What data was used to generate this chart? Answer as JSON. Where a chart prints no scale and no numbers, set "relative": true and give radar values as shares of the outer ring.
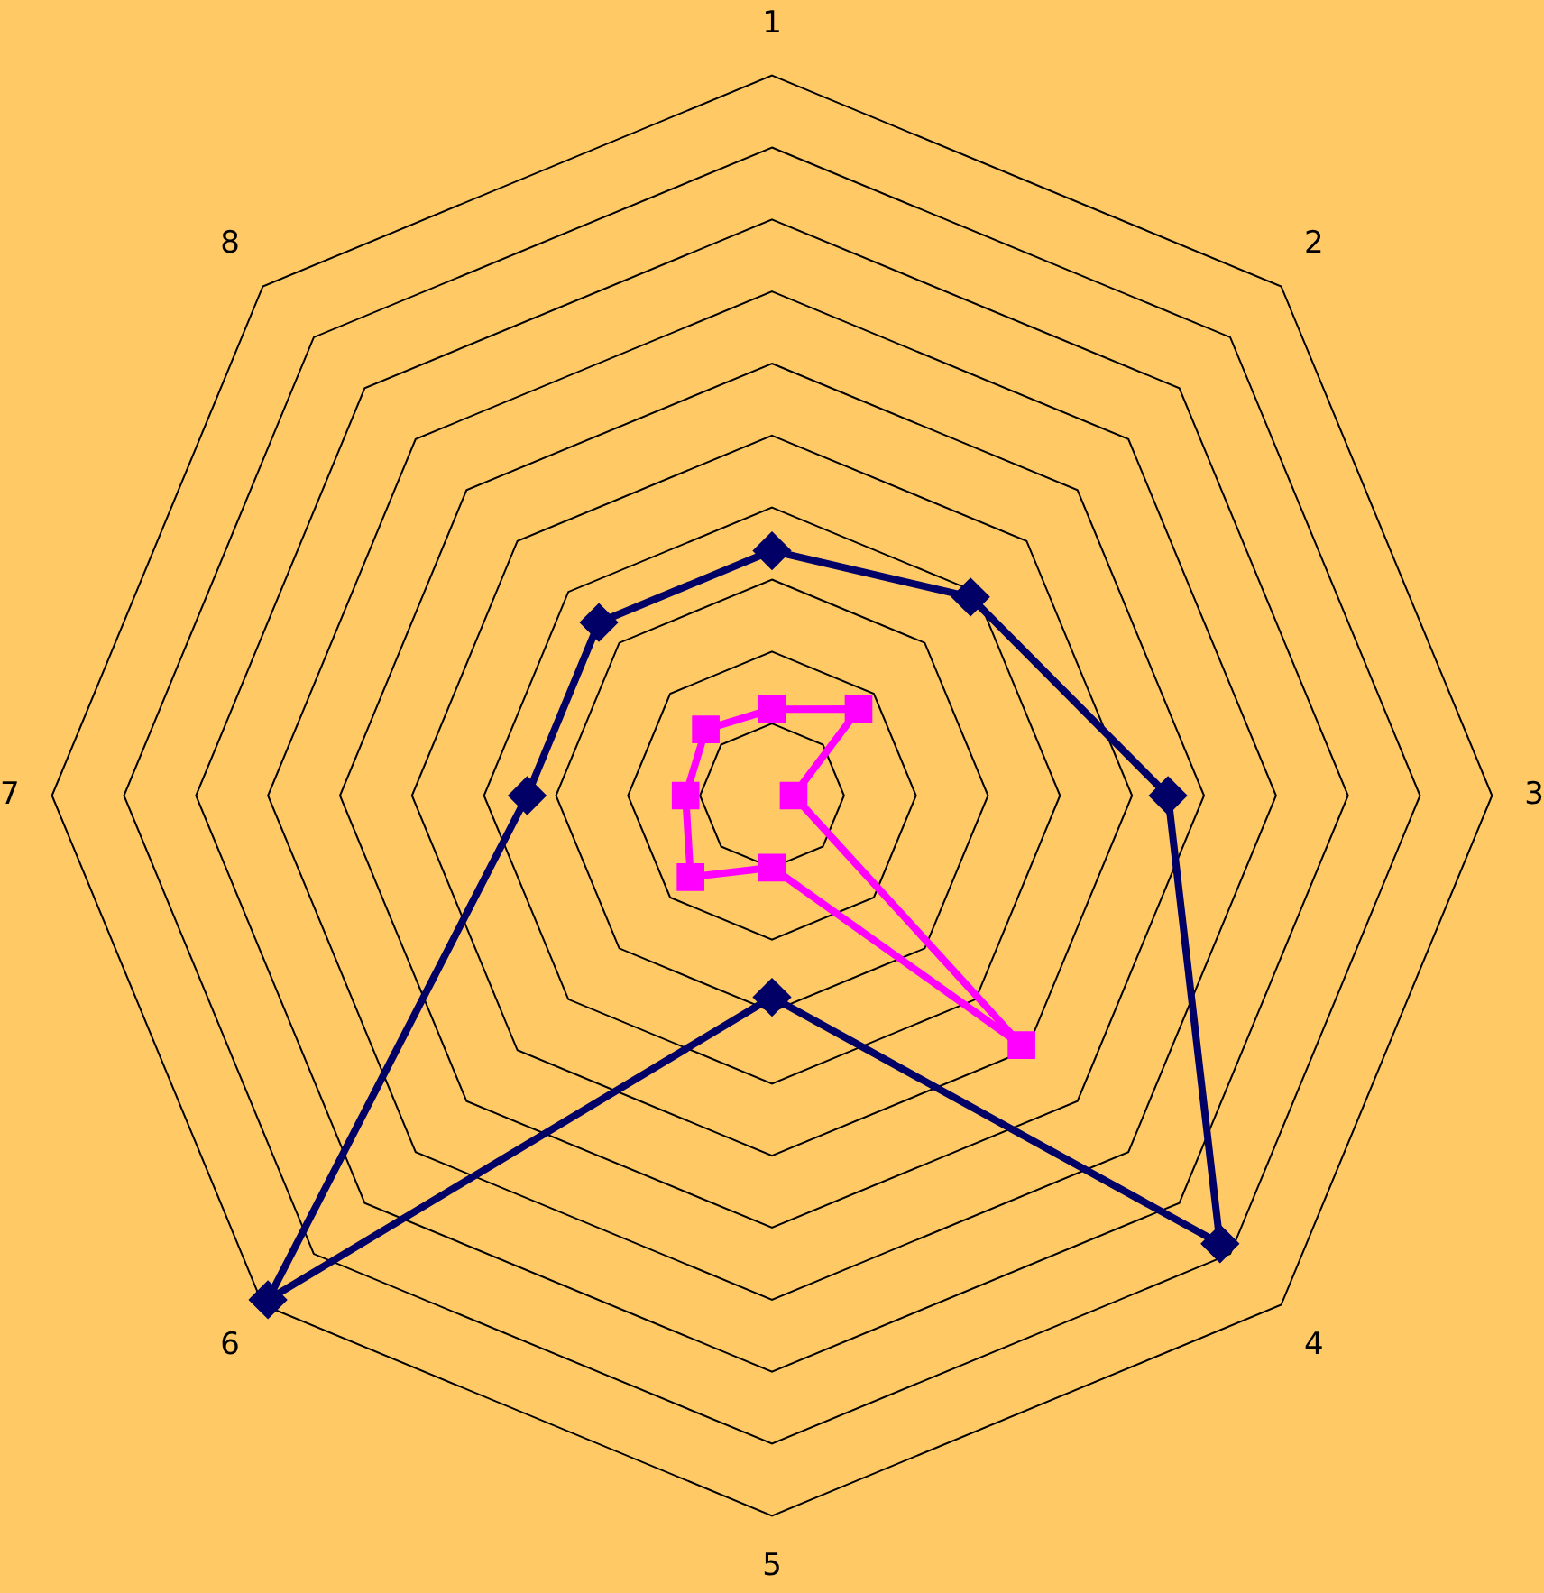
{
  "chart_data": {
    "type": "radar",
    "relative": true,
    "grid": true,
    "legend": false,
    "categories": [
      "1",
      "2",
      "3",
      "4",
      "5",
      "6",
      "7",
      "8"
    ],
    "series": [
      {
        "color": "#000066",
        "marker": "diamond",
        "values": [
          0.34,
          0.39,
          0.55,
          0.88,
          0.28,
          0.99,
          0.34,
          0.34
        ]
      },
      {
        "color": "#ff00ff",
        "marker": "square",
        "values": [
          0.12,
          0.17,
          0.03,
          0.49,
          0.1,
          0.16,
          0.12,
          0.13
        ]
      }
    ]
  }
}
